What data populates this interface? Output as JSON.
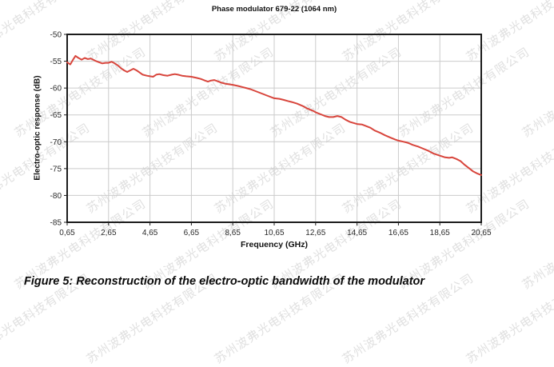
{
  "watermark": {
    "text": "苏州波弗光电科技有限公司"
  },
  "figure": {
    "caption": "Figure 5: Reconstruction of the electro-optic bandwidth of the modulator"
  },
  "chart_data": {
    "type": "line",
    "title": "Phase modulator 679-22 (1064 nm)",
    "xlabel": "Frequency (GHz)",
    "ylabel": "Electro-optic response (dB)",
    "xlim": [
      0.65,
      20.65
    ],
    "ylim": [
      -85,
      -50
    ],
    "grid": true,
    "legend": "none",
    "line_color": "#d8453c",
    "axis_color": "#1c1c1c",
    "grid_color": "#cbcbcb",
    "x_ticks": {
      "values": [
        0.65,
        2.65,
        4.65,
        6.65,
        8.65,
        10.65,
        12.65,
        14.65,
        16.65,
        18.65,
        20.65
      ],
      "labels": [
        "0,65",
        "2,65",
        "4,65",
        "6,65",
        "8,65",
        "10,65",
        "12,65",
        "14,65",
        "16,65",
        "18,65",
        "20,65"
      ]
    },
    "y_ticks": {
      "values": [
        -50,
        -55,
        -60,
        -65,
        -70,
        -75,
        -80,
        -85
      ],
      "labels": [
        "-50",
        "-55",
        "-60",
        "-65",
        "-70",
        "-75",
        "-80",
        "-85"
      ]
    },
    "series": [
      {
        "name": "Electro-optic response",
        "x": [
          0.65,
          0.8,
          0.95,
          1.05,
          1.2,
          1.35,
          1.5,
          1.65,
          1.8,
          2.0,
          2.2,
          2.35,
          2.5,
          2.65,
          2.8,
          2.95,
          3.1,
          3.25,
          3.4,
          3.55,
          3.7,
          3.85,
          4.0,
          4.15,
          4.3,
          4.5,
          4.65,
          4.8,
          4.95,
          5.1,
          5.3,
          5.5,
          5.7,
          5.85,
          6.0,
          6.2,
          6.4,
          6.65,
          6.9,
          7.1,
          7.3,
          7.45,
          7.6,
          7.75,
          7.9,
          8.1,
          8.3,
          8.65,
          8.9,
          9.1,
          9.3,
          9.5,
          9.7,
          9.9,
          10.1,
          10.3,
          10.65,
          10.9,
          11.1,
          11.3,
          11.5,
          11.75,
          12.0,
          12.25,
          12.5,
          12.65,
          12.9,
          13.1,
          13.3,
          13.5,
          13.7,
          13.9,
          14.1,
          14.3,
          14.65,
          14.9,
          15.1,
          15.3,
          15.5,
          15.75,
          16.0,
          16.25,
          16.5,
          16.65,
          16.9,
          17.1,
          17.35,
          17.6,
          17.85,
          18.1,
          18.35,
          18.65,
          18.9,
          19.1,
          19.25,
          19.45,
          19.65,
          19.85,
          20.05,
          20.25,
          20.45,
          20.65
        ],
        "y": [
          -55.2,
          -55.6,
          -54.6,
          -54.0,
          -54.4,
          -54.7,
          -54.4,
          -54.6,
          -54.5,
          -54.9,
          -55.2,
          -55.4,
          -55.3,
          -55.3,
          -55.1,
          -55.4,
          -55.8,
          -56.3,
          -56.7,
          -57.0,
          -56.7,
          -56.4,
          -56.7,
          -57.1,
          -57.5,
          -57.7,
          -57.8,
          -57.9,
          -57.5,
          -57.4,
          -57.6,
          -57.7,
          -57.5,
          -57.4,
          -57.5,
          -57.7,
          -57.8,
          -57.9,
          -58.1,
          -58.3,
          -58.6,
          -58.8,
          -58.6,
          -58.5,
          -58.7,
          -59.0,
          -59.2,
          -59.4,
          -59.6,
          -59.8,
          -60.0,
          -60.2,
          -60.5,
          -60.8,
          -61.1,
          -61.4,
          -61.9,
          -62.0,
          -62.2,
          -62.4,
          -62.6,
          -62.9,
          -63.3,
          -63.8,
          -64.2,
          -64.5,
          -64.9,
          -65.2,
          -65.4,
          -65.4,
          -65.2,
          -65.4,
          -65.9,
          -66.3,
          -66.7,
          -66.8,
          -67.1,
          -67.4,
          -67.9,
          -68.3,
          -68.8,
          -69.2,
          -69.6,
          -69.8,
          -70.0,
          -70.2,
          -70.6,
          -70.9,
          -71.3,
          -71.7,
          -72.2,
          -72.6,
          -72.9,
          -73.0,
          -72.9,
          -73.2,
          -73.6,
          -74.3,
          -74.9,
          -75.5,
          -75.9,
          -76.2
        ]
      }
    ]
  }
}
